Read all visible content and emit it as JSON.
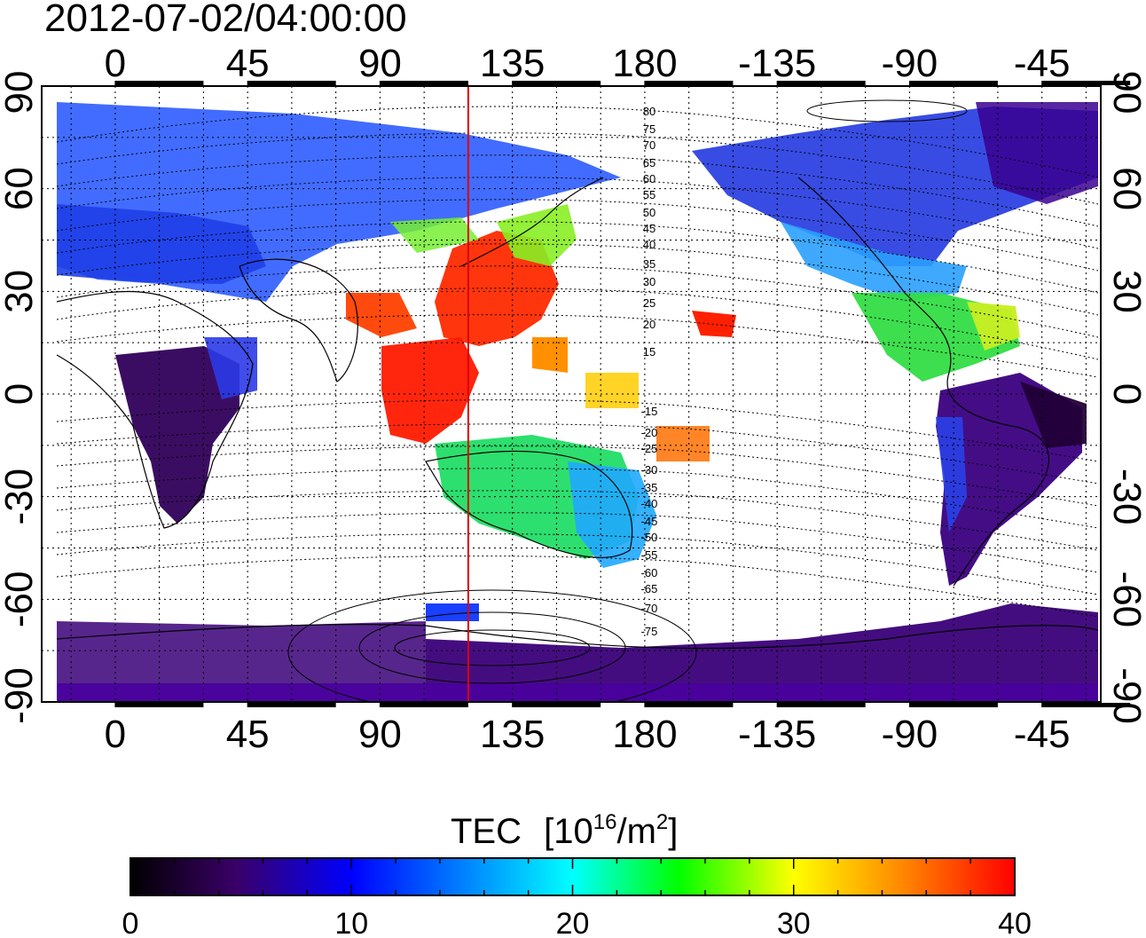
{
  "title": "2012-07-02/04:00:00",
  "top_axis_labels": [
    "0",
    "45",
    "90",
    "135",
    "180",
    "-135",
    "-90",
    "-45"
  ],
  "bottom_axis_labels": [
    "0",
    "45",
    "90",
    "135",
    "180",
    "-135",
    "-90",
    "-45"
  ],
  "left_axis_labels": [
    "90",
    "60",
    "30",
    "0",
    "-30",
    "-60",
    "-90"
  ],
  "right_axis_labels": [
    "90",
    "60",
    "30",
    "0",
    "-30",
    "-60",
    "-90"
  ],
  "contour_labels": [
    "80",
    "75",
    "70",
    "65",
    "60",
    "55",
    "50",
    "45",
    "40",
    "35",
    "30",
    "25",
    "20",
    "15",
    "-15",
    "-20",
    "-25",
    "-30",
    "-35",
    "-40",
    "-45",
    "-50",
    "-55",
    "-60",
    "-65",
    "-70",
    "-75"
  ],
  "colorbar": {
    "title": "TEC",
    "unit_base": "10",
    "unit_exp": "16",
    "unit_mid": "/m",
    "unit_exp2": "2",
    "unit_close": "]",
    "unit_open": "[",
    "tick_labels": [
      "0",
      "10",
      "20",
      "30",
      "40"
    ],
    "min": 0,
    "max": 40,
    "colors": [
      "#000000",
      "#3a0068",
      "#0000ff",
      "#00ffff",
      "#00ff00",
      "#ffff00",
      "#ff8000",
      "#ff0000"
    ]
  },
  "map": {
    "longitude_ticks": [
      0,
      45,
      90,
      135,
      180,
      -135,
      -90,
      -45
    ],
    "latitude_ticks": [
      90,
      60,
      30,
      0,
      -30,
      -60,
      -90
    ],
    "marker_longitude": 120,
    "marker_color": "#e00000"
  }
}
